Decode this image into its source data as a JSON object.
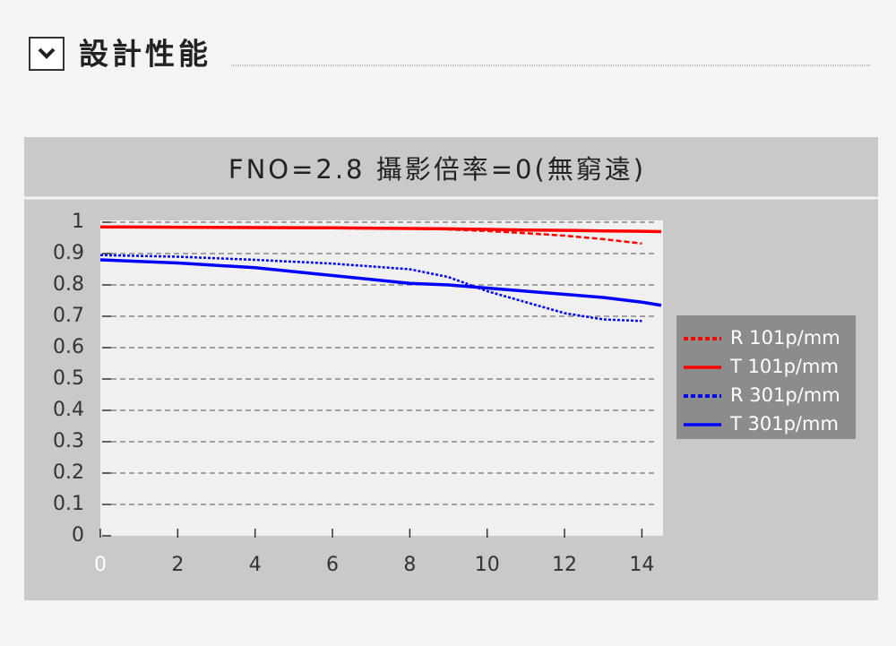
{
  "header": {
    "title": "設計性能"
  },
  "chart_data": {
    "type": "line",
    "title": "FNO=2.8 攝影倍率=0(無窮遠)",
    "x": [
      0,
      2,
      4,
      6,
      8,
      9,
      10,
      11,
      12,
      13,
      14,
      14.5
    ],
    "series": [
      {
        "name": "R 101p/mm",
        "color": "#ff0000",
        "dash": "dashed",
        "values": [
          0.985,
          0.985,
          0.984,
          0.983,
          0.98,
          0.977,
          0.972,
          0.965,
          0.957,
          0.946,
          0.932,
          null
        ]
      },
      {
        "name": "T 101p/mm",
        "color": "#ff0000",
        "dash": "solid",
        "values": [
          0.985,
          0.984,
          0.983,
          0.982,
          0.98,
          0.979,
          0.977,
          0.975,
          0.974,
          0.972,
          0.971,
          0.97
        ]
      },
      {
        "name": "R 301p/mm",
        "color": "#0000ff",
        "dash": "dotted",
        "values": [
          0.895,
          0.89,
          0.88,
          0.868,
          0.85,
          0.825,
          0.78,
          0.745,
          0.71,
          0.69,
          0.685,
          null
        ]
      },
      {
        "name": "T 301p/mm",
        "color": "#0000ff",
        "dash": "solid",
        "values": [
          0.88,
          0.87,
          0.855,
          0.83,
          0.805,
          0.8,
          0.79,
          0.78,
          0.77,
          0.76,
          0.745,
          0.735
        ]
      }
    ],
    "xlim": [
      0,
      14.5
    ],
    "xticks": [
      0,
      2,
      4,
      6,
      8,
      10,
      12,
      14
    ],
    "ylim": [
      0,
      1
    ],
    "yticks": [
      0,
      0.1,
      0.2,
      0.3,
      0.4,
      0.5,
      0.6,
      0.7,
      0.8,
      0.9,
      1
    ],
    "grid": true,
    "legend": "right"
  }
}
